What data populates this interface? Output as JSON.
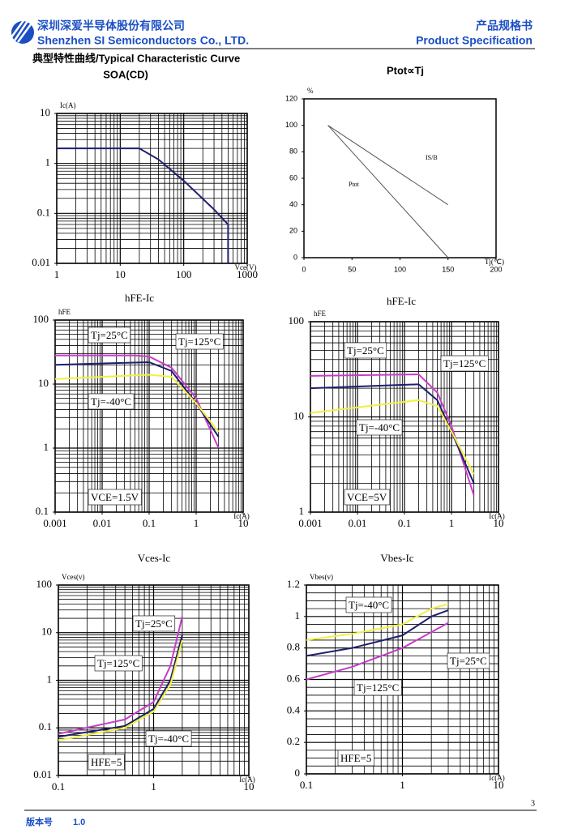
{
  "header": {
    "company_cn": "深圳深爱半导体股份有限公司",
    "company_en": "Shenzhen SI Semiconductors Co., LTD.",
    "doc_cn": "产品规格书",
    "doc_en": "Product Specification",
    "section": "典型特性曲线/Typical Characteristic Curve"
  },
  "footer": {
    "page": 3,
    "version_label": "版本号",
    "version": "1.0"
  },
  "chart_data": [
    {
      "type": "line",
      "title": "SOA(CD)",
      "ylabel": "Ic(A)",
      "xlabel": "Vce(V)",
      "log_x": true,
      "log_y": true,
      "grid": true,
      "xlim": [
        1,
        1000
      ],
      "ylim": [
        0.01,
        10
      ],
      "xticks": [
        1,
        10,
        100,
        1000
      ],
      "yticks": [
        0.01,
        0.1,
        1,
        10
      ],
      "color": "#1f1f6e",
      "x": [
        1,
        20,
        40,
        100,
        300,
        500,
        500
      ],
      "values": [
        2,
        2,
        1.2,
        0.45,
        0.12,
        0.06,
        0.01
      ]
    },
    {
      "type": "line",
      "title": "Ptot∝Tj",
      "ylabel": "%",
      "xlabel": "Tj(℃)",
      "log_x": false,
      "log_y": false,
      "grid": false,
      "xlim": [
        0,
        200
      ],
      "ylim": [
        0,
        120
      ],
      "xticks": [
        0,
        50,
        100,
        150,
        200
      ],
      "yticks": [
        0,
        20,
        40,
        60,
        80,
        100,
        120
      ],
      "series": [
        {
          "name": "Ptot",
          "color": "#555555",
          "x": [
            25,
            150
          ],
          "values": [
            100,
            0
          ]
        },
        {
          "name": "IS/B",
          "color": "#555555",
          "x": [
            25,
            150
          ],
          "values": [
            100,
            40
          ]
        }
      ]
    },
    {
      "type": "line",
      "title": "hFE-Ic",
      "ylabel": "hFE",
      "xlabel": "Ic(A)",
      "log_x": true,
      "log_y": true,
      "grid": true,
      "xlim": [
        0.001,
        10
      ],
      "ylim": [
        0.1,
        100
      ],
      "xticks": [
        0.001,
        0.01,
        0.1,
        1,
        10
      ],
      "yticks": [
        0.1,
        1,
        10,
        100
      ],
      "annotations": [
        "VCE=1.5V"
      ],
      "series": [
        {
          "name": "Tj=125°C",
          "color": "#c83cc8",
          "x": [
            0.001,
            0.05,
            0.1,
            0.3,
            1,
            3
          ],
          "values": [
            28,
            28,
            27,
            18,
            6,
            1
          ]
        },
        {
          "name": "Tj=25°C",
          "color": "#1f1f6e",
          "x": [
            0.001,
            0.1,
            0.3,
            1,
            3
          ],
          "values": [
            20,
            22,
            16,
            5,
            1.5
          ]
        },
        {
          "name": "Tj=-40°C",
          "color": "#f0f040",
          "x": [
            0.001,
            0.1,
            0.3,
            1,
            3
          ],
          "values": [
            12,
            14,
            13,
            5,
            1.8
          ]
        }
      ]
    },
    {
      "type": "line",
      "title": "hFE-Ic",
      "ylabel": "hFE",
      "xlabel": "Ic(A)",
      "log_x": true,
      "log_y": true,
      "grid": true,
      "xlim": [
        0.001,
        10
      ],
      "ylim": [
        1,
        100
      ],
      "xticks": [
        0.001,
        0.01,
        0.1,
        1,
        10
      ],
      "yticks": [
        1,
        10,
        100
      ],
      "annotations": [
        "VCE=5V"
      ],
      "series": [
        {
          "name": "Tj=125°C",
          "color": "#c83cc8",
          "x": [
            0.001,
            0.2,
            0.5,
            1,
            3
          ],
          "values": [
            27,
            28,
            18,
            8,
            1.5
          ]
        },
        {
          "name": "Tj=25°C",
          "color": "#1f1f6e",
          "x": [
            0.001,
            0.2,
            0.5,
            1,
            3
          ],
          "values": [
            20,
            22,
            15,
            7,
            2
          ]
        },
        {
          "name": "Tj=-40°C",
          "color": "#f0f040",
          "x": [
            0.001,
            0.2,
            0.5,
            1,
            3
          ],
          "values": [
            11,
            15,
            13,
            7,
            2.5
          ]
        }
      ]
    },
    {
      "type": "line",
      "title": "Vces-Ic",
      "ylabel": "Vces(v)",
      "xlabel": "Ic(A)",
      "log_x": true,
      "log_y": true,
      "grid": true,
      "xlim": [
        0.1,
        10
      ],
      "ylim": [
        0.01,
        100
      ],
      "xticks": [
        0.1,
        1,
        10
      ],
      "yticks": [
        0.01,
        0.1,
        1,
        10,
        100
      ],
      "annotations": [
        "HFE=5"
      ],
      "series": [
        {
          "name": "Tj=125°C",
          "color": "#c83cc8",
          "x": [
            0.1,
            0.5,
            1,
            1.5,
            2
          ],
          "values": [
            0.075,
            0.15,
            0.35,
            2,
            22
          ]
        },
        {
          "name": "Tj=25°C",
          "color": "#1f1f6e",
          "x": [
            0.1,
            0.5,
            1,
            1.5,
            2
          ],
          "values": [
            0.065,
            0.11,
            0.25,
            1,
            9
          ]
        },
        {
          "name": "Tj=-40°C",
          "color": "#f0f040",
          "x": [
            0.1,
            0.5,
            1,
            1.5,
            2
          ],
          "values": [
            0.055,
            0.1,
            0.22,
            0.8,
            7
          ]
        }
      ]
    },
    {
      "type": "line",
      "title": "Vbes-Ic",
      "ylabel": "Vbes(v)",
      "xlabel": "Ic(A)",
      "log_x": true,
      "log_y": false,
      "grid": true,
      "xlim": [
        0.1,
        10
      ],
      "ylim": [
        0,
        1.2
      ],
      "xticks": [
        0.1,
        1,
        10
      ],
      "yticks": [
        0,
        0.2,
        0.4,
        0.6,
        0.8,
        1,
        1.2
      ],
      "annotations": [
        "HFE=5"
      ],
      "series": [
        {
          "name": "Tj=125°C",
          "color": "#c83cc8",
          "x": [
            0.1,
            0.3,
            1,
            3
          ],
          "values": [
            0.6,
            0.68,
            0.8,
            0.96
          ]
        },
        {
          "name": "Tj=25°C",
          "color": "#1f1f6e",
          "x": [
            0.1,
            0.3,
            1,
            2,
            3
          ],
          "values": [
            0.75,
            0.8,
            0.88,
            1,
            1.04
          ]
        },
        {
          "name": "Tj=-40°C",
          "color": "#f0f040",
          "x": [
            0.1,
            0.3,
            1,
            2,
            3
          ],
          "values": [
            0.85,
            0.89,
            0.95,
            1.05,
            1.08
          ]
        }
      ]
    }
  ]
}
